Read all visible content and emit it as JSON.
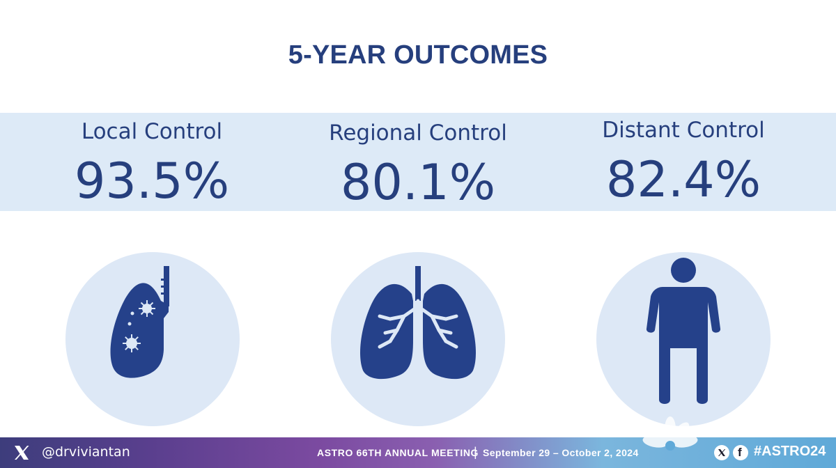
{
  "slide": {
    "title": "5-YEAR OUTCOMES",
    "metrics": [
      {
        "label": "Local Control",
        "value": "93.5%",
        "icon": "lung-tumor-icon"
      },
      {
        "label": "Regional Control",
        "value": "80.1%",
        "icon": "lungs-icon"
      },
      {
        "label": "Distant Control",
        "value": "82.4%",
        "icon": "person-icon"
      }
    ]
  },
  "footer": {
    "handle": "@drviviantan",
    "meeting": "ASTRO 66TH ANNUAL MEETING",
    "separator": "|",
    "dates": "September 29 – October 2, 2024",
    "hashtag": "#ASTRO24",
    "social_f": "f"
  },
  "colors": {
    "primary_text": "#263f7d",
    "band": "#ddeaf7",
    "icon_circle": "#dde8f6",
    "icon_fill": "#25418a"
  }
}
